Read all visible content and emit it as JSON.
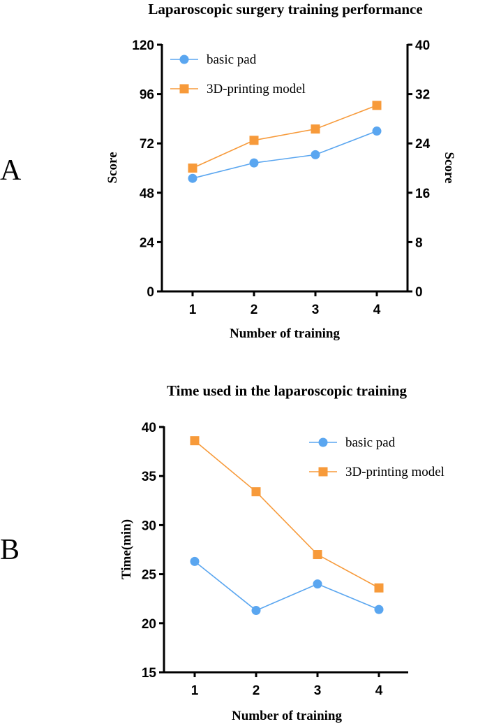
{
  "panels": [
    {
      "label": "A",
      "colors": {
        "basic": "#5aa6f0",
        "printed": "#f79a3a"
      },
      "chart_data": {
        "type": "line",
        "title": "Laparoscopic surgery training performance",
        "xlabel": "Number of training",
        "ylabel": "Score",
        "ylabel_right": "Score",
        "categories": [
          "1",
          "2",
          "3",
          "4"
        ],
        "ylim": [
          0,
          120
        ],
        "y_ticks": [
          "0",
          "24",
          "48",
          "72",
          "96",
          "120"
        ],
        "ylim_right": [
          0,
          40
        ],
        "y_ticks_right": [
          "0",
          "8",
          "16",
          "24",
          "32",
          "40"
        ],
        "legend_position": "top-left",
        "grid": false,
        "series": [
          {
            "name": "basic pad",
            "marker": "circle",
            "values": [
              55,
              62.5,
              66.5,
              78
            ]
          },
          {
            "name": "3D-printing model",
            "marker": "square",
            "values": [
              60,
              73.5,
              79,
              90.5
            ]
          }
        ]
      }
    },
    {
      "label": "B",
      "colors": {
        "basic": "#5aa6f0",
        "printed": "#f79a3a"
      },
      "chart_data": {
        "type": "line",
        "title": "Time used in the laparoscopic training",
        "xlabel": "Number of training",
        "ylabel": "Time(min)",
        "categories": [
          "1",
          "2",
          "3",
          "4"
        ],
        "ylim": [
          15,
          40
        ],
        "y_ticks": [
          "15",
          "20",
          "25",
          "30",
          "35",
          "40"
        ],
        "legend_position": "top-right",
        "grid": false,
        "series": [
          {
            "name": "basic pad",
            "marker": "circle",
            "values": [
              26.3,
              21.3,
              24,
              21.4
            ]
          },
          {
            "name": "3D-printing model",
            "marker": "square",
            "values": [
              38.6,
              33.4,
              27,
              23.6
            ]
          }
        ]
      }
    }
  ]
}
